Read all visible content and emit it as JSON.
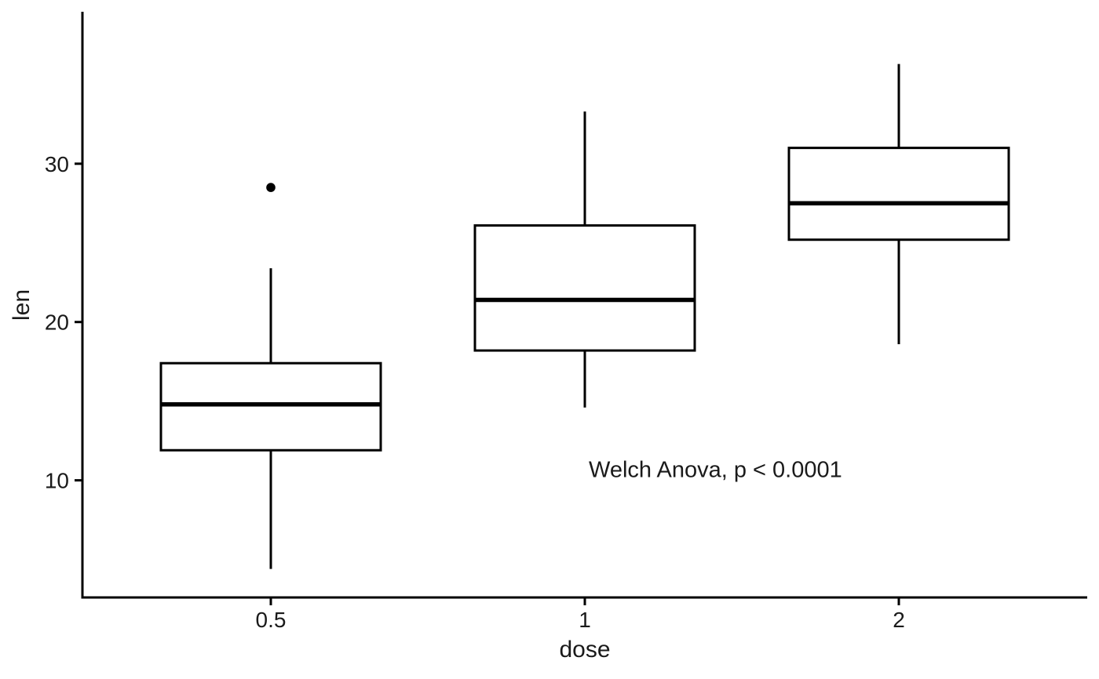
{
  "chart_data": {
    "type": "boxplot",
    "title": "",
    "xlabel": "dose",
    "ylabel": "len",
    "categories": [
      "0.5",
      "1",
      "2"
    ],
    "boxes": [
      {
        "category": "0.5",
        "whisker_low": 4.4,
        "q1": 11.9,
        "median": 14.8,
        "q3": 17.4,
        "whisker_high": 23.4,
        "outliers": [
          28.5
        ]
      },
      {
        "category": "1",
        "whisker_low": 14.6,
        "q1": 18.2,
        "median": 21.4,
        "q3": 26.1,
        "whisker_high": 33.3,
        "outliers": []
      },
      {
        "category": "2",
        "whisker_low": 18.6,
        "q1": 25.2,
        "median": 27.5,
        "q3": 31.0,
        "whisker_high": 36.3,
        "outliers": []
      }
    ],
    "y_ticks": [
      "10",
      "20",
      "30"
    ],
    "ylim": [
      2.6,
      39.6
    ],
    "grid": "off",
    "legend": "none",
    "annotation": {
      "text": "Welch Anova, p < 0.0001",
      "x_category_index": 1,
      "y_value": 10.6,
      "anchor": "start"
    },
    "colors": {
      "line": "#000000",
      "box_fill": "#ffffff",
      "text": "#1a1a1a",
      "background": "#ffffff"
    }
  }
}
